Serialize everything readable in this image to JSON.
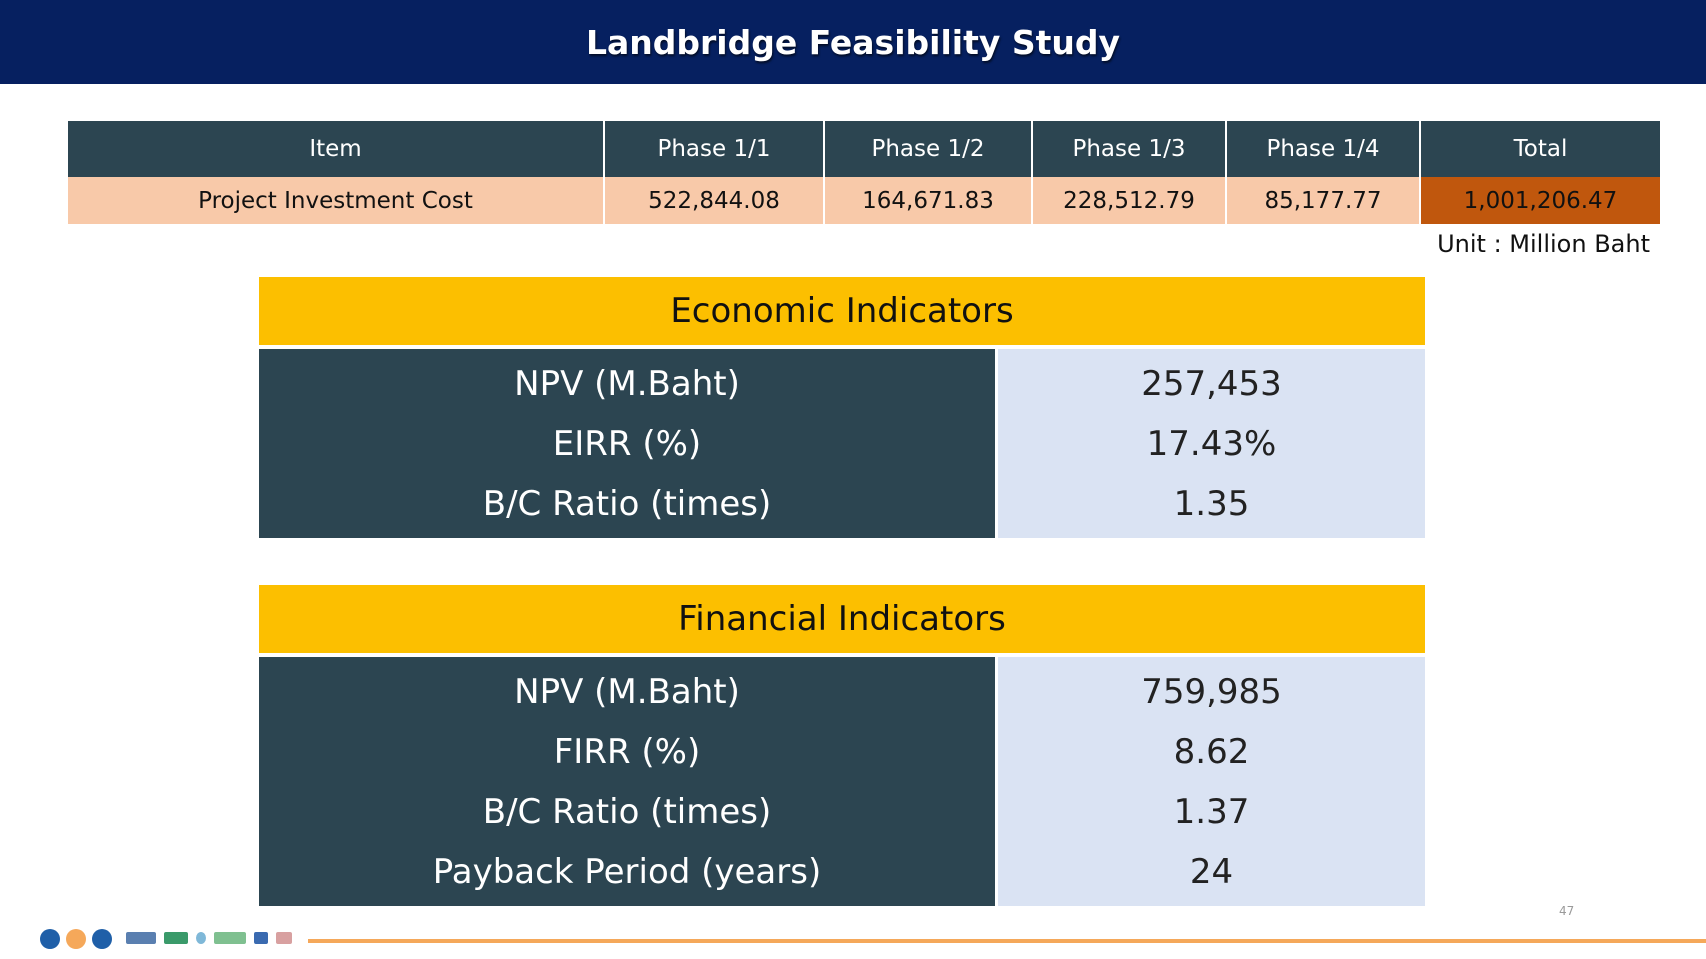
{
  "title": "Landbridge Feasibility Study",
  "cost_table": {
    "headers": [
      "Item",
      "Phase 1/1",
      "Phase 1/2",
      "Phase 1/3",
      "Phase 1/4",
      "Total"
    ],
    "row": [
      "Project Investment Cost",
      "522,844.08",
      "164,671.83",
      "228,512.79",
      "85,177.77",
      "1,001,206.47"
    ],
    "unit": "Unit : Million Baht"
  },
  "economic": {
    "title": "Economic Indicators",
    "rows": [
      {
        "label": "NPV (M.Baht)",
        "value": "257,453"
      },
      {
        "label": "EIRR (%)",
        "value": "17.43%"
      },
      {
        "label": "B/C Ratio (times)",
        "value": "1.35"
      }
    ]
  },
  "financial": {
    "title": "Financial Indicators",
    "rows": [
      {
        "label": "NPV (M.Baht)",
        "value": "759,985"
      },
      {
        "label": "FIRR (%)",
        "value": "8.62"
      },
      {
        "label": "B/C Ratio (times)",
        "value": "1.37"
      },
      {
        "label": "Payback Period (years)",
        "value": "24"
      }
    ]
  },
  "page_number": "47",
  "colors": {
    "title_bar": "#062060",
    "table_header": "#2c4551",
    "cost_row": "#f8c9a9",
    "total_highlight": "#c0570d",
    "indicator_header": "#fcbf00",
    "value_cell": "#dae3f3",
    "footer_line": "#f5a85a"
  },
  "footer": {
    "dots": [
      "#1f5fa8",
      "#f5a85a",
      "#1f5fa8"
    ],
    "logos": [
      "logo-team-icon",
      "logo-ssac-icon",
      "logo-circle-icon",
      "logo-dc-icon",
      "logo-loop-icon",
      "logo-bird-icon"
    ]
  }
}
